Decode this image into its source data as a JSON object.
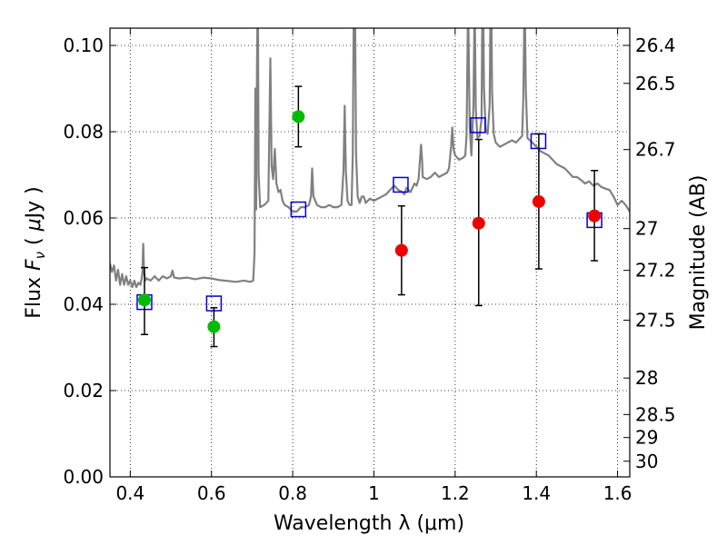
{
  "chart_data": {
    "type": "scatter",
    "xlabel": "Wavelength  λ (μm)",
    "ylabel": "Flux  F_ν  ( μJy )",
    "ylabel_parts": [
      "Flux  ",
      "F",
      "ν",
      "  ( ",
      "μ",
      "Jy )"
    ],
    "y2label": "Magnitude (AB)",
    "xlim": [
      0.35,
      1.63
    ],
    "ylim": [
      0.0,
      0.104
    ],
    "grid": true,
    "legend": "none",
    "x_ticks": [
      {
        "value": 0.4,
        "label": "0.4"
      },
      {
        "value": 0.6,
        "label": "0.6"
      },
      {
        "value": 0.8,
        "label": "0.8"
      },
      {
        "value": 1.0,
        "label": "1"
      },
      {
        "value": 1.2,
        "label": "1.2"
      },
      {
        "value": 1.4,
        "label": "1.4"
      },
      {
        "value": 1.6,
        "label": "1.6"
      }
    ],
    "y_ticks": [
      {
        "value": 0.0,
        "label": "0.00"
      },
      {
        "value": 0.02,
        "label": "0.02"
      },
      {
        "value": 0.04,
        "label": "0.04"
      },
      {
        "value": 0.06,
        "label": "0.06"
      },
      {
        "value": 0.08,
        "label": "0.08"
      },
      {
        "value": 0.1,
        "label": "0.10"
      }
    ],
    "y2_ticks": [
      {
        "value": 26.4,
        "label": "26.4"
      },
      {
        "value": 26.5,
        "label": "26.5"
      },
      {
        "value": 26.7,
        "label": "26.7"
      },
      {
        "value": 27.0,
        "label": "27"
      },
      {
        "value": 27.2,
        "label": "27.2"
      },
      {
        "value": 27.5,
        "label": "27.5"
      },
      {
        "value": 28.0,
        "label": "28"
      },
      {
        "value": 28.5,
        "label": "28.5"
      },
      {
        "value": 29.0,
        "label": "29"
      },
      {
        "value": 30.0,
        "label": "30"
      }
    ],
    "spectrum": {
      "color": "#808080",
      "points": [
        [
          0.35,
          0.0495
        ],
        [
          0.355,
          0.0475
        ],
        [
          0.36,
          0.049
        ],
        [
          0.365,
          0.0455
        ],
        [
          0.37,
          0.048
        ],
        [
          0.375,
          0.0445
        ],
        [
          0.38,
          0.047
        ],
        [
          0.385,
          0.0445
        ],
        [
          0.39,
          0.0465
        ],
        [
          0.395,
          0.0445
        ],
        [
          0.4,
          0.0455
        ],
        [
          0.405,
          0.044
        ],
        [
          0.41,
          0.0455
        ],
        [
          0.415,
          0.044
        ],
        [
          0.42,
          0.045
        ],
        [
          0.425,
          0.0445
        ],
        [
          0.428,
          0.046
        ],
        [
          0.43,
          0.0475
        ],
        [
          0.432,
          0.054
        ],
        [
          0.434,
          0.0475
        ],
        [
          0.437,
          0.0455
        ],
        [
          0.44,
          0.046
        ],
        [
          0.45,
          0.0455
        ],
        [
          0.46,
          0.0465
        ],
        [
          0.47,
          0.0455
        ],
        [
          0.48,
          0.0465
        ],
        [
          0.49,
          0.046
        ],
        [
          0.5,
          0.0465
        ],
        [
          0.5,
          0.0465
        ],
        [
          0.504,
          0.0478
        ],
        [
          0.508,
          0.0462
        ],
        [
          0.52,
          0.046
        ],
        [
          0.54,
          0.0462
        ],
        [
          0.56,
          0.0458
        ],
        [
          0.58,
          0.0462
        ],
        [
          0.6,
          0.046
        ],
        [
          0.62,
          0.0456
        ],
        [
          0.64,
          0.0454
        ],
        [
          0.66,
          0.0452
        ],
        [
          0.68,
          0.0455
        ],
        [
          0.695,
          0.0452
        ],
        [
          0.703,
          0.0455
        ],
        [
          0.706,
          0.052
        ],
        [
          0.708,
          0.09
        ],
        [
          0.71,
          0.062
        ],
        [
          0.712,
          0.095
        ],
        [
          0.714,
          0.115
        ],
        [
          0.716,
          0.07
        ],
        [
          0.72,
          0.0625
        ],
        [
          0.73,
          0.063
        ],
        [
          0.74,
          0.064
        ],
        [
          0.745,
          0.097
        ],
        [
          0.748,
          0.072
        ],
        [
          0.752,
          0.069
        ],
        [
          0.756,
          0.076
        ],
        [
          0.76,
          0.068
        ],
        [
          0.765,
          0.066
        ],
        [
          0.77,
          0.0665
        ],
        [
          0.775,
          0.064
        ],
        [
          0.78,
          0.063
        ],
        [
          0.79,
          0.0625
        ],
        [
          0.8,
          0.0615
        ],
        [
          0.81,
          0.0615
        ],
        [
          0.82,
          0.0625
        ],
        [
          0.83,
          0.0625
        ],
        [
          0.84,
          0.063
        ],
        [
          0.845,
          0.065
        ],
        [
          0.848,
          0.0715
        ],
        [
          0.851,
          0.065
        ],
        [
          0.86,
          0.063
        ],
        [
          0.87,
          0.0625
        ],
        [
          0.88,
          0.0625
        ],
        [
          0.89,
          0.063
        ],
        [
          0.9,
          0.0625
        ],
        [
          0.91,
          0.0625
        ],
        [
          0.92,
          0.063
        ],
        [
          0.925,
          0.071
        ],
        [
          0.928,
          0.086
        ],
        [
          0.931,
          0.071
        ],
        [
          0.935,
          0.064
        ],
        [
          0.94,
          0.063
        ],
        [
          0.945,
          0.063
        ],
        [
          0.948,
          0.075
        ],
        [
          0.952,
          0.13
        ],
        [
          0.956,
          0.075
        ],
        [
          0.96,
          0.065
        ],
        [
          0.965,
          0.0635
        ],
        [
          0.97,
          0.065
        ],
        [
          0.975,
          0.065
        ],
        [
          0.98,
          0.0635
        ],
        [
          0.99,
          0.0645
        ],
        [
          1.0,
          0.064
        ],
        [
          1.01,
          0.0645
        ],
        [
          1.02,
          0.065
        ],
        [
          1.03,
          0.0655
        ],
        [
          1.04,
          0.0665
        ],
        [
          1.05,
          0.0675
        ],
        [
          1.06,
          0.0665
        ],
        [
          1.07,
          0.066
        ],
        [
          1.075,
          0.0655
        ],
        [
          1.08,
          0.067
        ],
        [
          1.085,
          0.0665
        ],
        [
          1.09,
          0.066
        ],
        [
          1.095,
          0.067
        ],
        [
          1.1,
          0.068
        ],
        [
          1.105,
          0.0675
        ],
        [
          1.11,
          0.069
        ],
        [
          1.113,
          0.073
        ],
        [
          1.116,
          0.077
        ],
        [
          1.119,
          0.073
        ],
        [
          1.12,
          0.0695
        ],
        [
          1.13,
          0.069
        ],
        [
          1.14,
          0.0695
        ],
        [
          1.15,
          0.0705
        ],
        [
          1.16,
          0.0695
        ],
        [
          1.17,
          0.07
        ],
        [
          1.18,
          0.0705
        ],
        [
          1.185,
          0.0715
        ],
        [
          1.19,
          0.0765
        ],
        [
          1.193,
          0.081
        ],
        [
          1.196,
          0.076
        ],
        [
          1.2,
          0.0745
        ],
        [
          1.21,
          0.0735
        ],
        [
          1.22,
          0.074
        ],
        [
          1.225,
          0.0745
        ],
        [
          1.228,
          0.079
        ],
        [
          1.232,
          0.11
        ],
        [
          1.236,
          0.081
        ],
        [
          1.24,
          0.0745
        ],
        [
          1.245,
          0.086
        ],
        [
          1.248,
          0.11
        ],
        [
          1.251,
          0.085
        ],
        [
          1.255,
          0.0785
        ],
        [
          1.26,
          0.079
        ],
        [
          1.265,
          0.083
        ],
        [
          1.268,
          0.12
        ],
        [
          1.271,
          0.09
        ],
        [
          1.275,
          0.0805
        ],
        [
          1.28,
          0.0795
        ],
        [
          1.285,
          0.086
        ],
        [
          1.288,
          0.12
        ],
        [
          1.291,
          0.089
        ],
        [
          1.295,
          0.0795
        ],
        [
          1.3,
          0.0775
        ],
        [
          1.31,
          0.0765
        ],
        [
          1.32,
          0.077
        ],
        [
          1.33,
          0.0775
        ],
        [
          1.34,
          0.078
        ],
        [
          1.35,
          0.0775
        ],
        [
          1.36,
          0.0785
        ],
        [
          1.365,
          0.079
        ],
        [
          1.368,
          0.088
        ],
        [
          1.371,
          0.112
        ],
        [
          1.374,
          0.09
        ],
        [
          1.378,
          0.0785
        ],
        [
          1.39,
          0.0775
        ],
        [
          1.4,
          0.0765
        ],
        [
          1.41,
          0.0755
        ],
        [
          1.42,
          0.075
        ],
        [
          1.43,
          0.0745
        ],
        [
          1.44,
          0.0735
        ],
        [
          1.45,
          0.0725
        ],
        [
          1.46,
          0.072
        ],
        [
          1.47,
          0.0715
        ],
        [
          1.48,
          0.0705
        ],
        [
          1.49,
          0.0695
        ],
        [
          1.5,
          0.0695
        ],
        [
          1.51,
          0.0688
        ],
        [
          1.52,
          0.068
        ],
        [
          1.53,
          0.0685
        ],
        [
          1.54,
          0.0675
        ],
        [
          1.55,
          0.068
        ],
        [
          1.56,
          0.0672
        ],
        [
          1.57,
          0.0668
        ],
        [
          1.58,
          0.0665
        ],
        [
          1.59,
          0.065
        ],
        [
          1.6,
          0.063
        ],
        [
          1.61,
          0.064
        ],
        [
          1.62,
          0.063
        ],
        [
          1.63,
          0.0615
        ]
      ]
    },
    "green_points": [
      {
        "x": 0.435,
        "y": 0.041,
        "err_lo": 0.033,
        "err_hi": 0.0485,
        "color": "#00bb00"
      },
      {
        "x": 0.606,
        "y": 0.0348,
        "err_lo": 0.0302,
        "err_hi": 0.0392,
        "color": "#00bb00"
      },
      {
        "x": 0.814,
        "y": 0.0835,
        "err_lo": 0.0765,
        "err_hi": 0.0905,
        "color": "#00bb00"
      }
    ],
    "red_points": [
      {
        "x": 1.068,
        "y": 0.0525,
        "err_lo": 0.0422,
        "err_hi": 0.0628,
        "color": "#ee0000"
      },
      {
        "x": 1.258,
        "y": 0.0588,
        "err_lo": 0.0397,
        "err_hi": 0.0782,
        "color": "#ee0000"
      },
      {
        "x": 1.406,
        "y": 0.0638,
        "err_lo": 0.0482,
        "err_hi": 0.0795,
        "color": "#ee0000"
      },
      {
        "x": 1.543,
        "y": 0.0605,
        "err_lo": 0.0501,
        "err_hi": 0.071,
        "color": "#ee0000"
      }
    ],
    "model_points": {
      "color": "#0000cc",
      "points": [
        [
          0.435,
          0.0405
        ],
        [
          0.606,
          0.0402
        ],
        [
          0.814,
          0.062
        ],
        [
          1.066,
          0.0677
        ],
        [
          1.256,
          0.0815
        ],
        [
          1.405,
          0.0778
        ],
        [
          1.543,
          0.0595
        ]
      ]
    }
  }
}
